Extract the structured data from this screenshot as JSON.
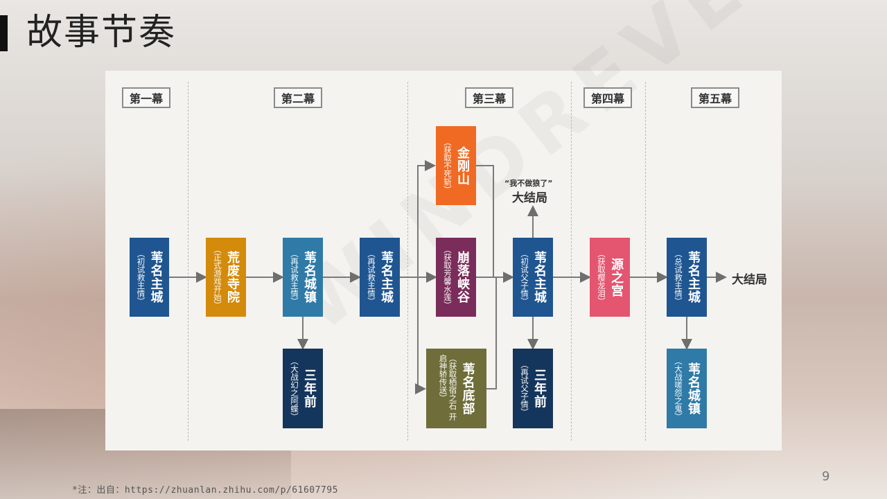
{
  "slide": {
    "title": "故事节奏",
    "footnote": "*注：出自：https://zhuanlan.zhihu.com/p/61607795",
    "page_number": "9",
    "watermark": "WINDREVEZ"
  },
  "acts": [
    "第一幕",
    "第二幕",
    "第三幕",
    "第四幕",
    "第五幕"
  ],
  "nodes": {
    "n1": {
      "title": "苇名主城",
      "sub": "（初试救主情）",
      "color": "#1f5590"
    },
    "n2": {
      "title": "荒废寺院",
      "sub": "（正式游戏开始）",
      "color": "#d48a0a"
    },
    "n3": {
      "title": "苇名城镇",
      "sub": "（再试救主情）",
      "color": "#2f7aa6"
    },
    "n4": {
      "title": "三年前",
      "sub": "（大战幻之阿蝶）",
      "color": "#15365c"
    },
    "n5": {
      "title": "苇名主城",
      "sub": "（再试救主情）",
      "color": "#1f5590"
    },
    "n6": {
      "title": "金刚山",
      "sub": "（获取不死斩）",
      "color": "#f06a23"
    },
    "n7": {
      "title": "崩落峡谷",
      "sub": "（获取芳馨水莲）",
      "color": "#7a2c5a"
    },
    "n8": {
      "title": "苇名底部",
      "sub": "（获取栖宿之石 开启神轿传送）",
      "color": "#6f6e3a"
    },
    "n9": {
      "title": "苇名主城",
      "sub": "（初试父子情）",
      "color": "#1f5590"
    },
    "n10": {
      "title": "三年前",
      "sub": "（再试父子情）",
      "color": "#15365c"
    },
    "n11": {
      "title": "源之宫",
      "sub": "（获取樱龙泪）",
      "color": "#e4556f"
    },
    "n12": {
      "title": "苇名主城",
      "sub": "（总试救主情）",
      "color": "#1f5590"
    },
    "n13": {
      "title": "苇名城镇",
      "sub": "（大战嗟怨之鬼）",
      "color": "#2f7aa6"
    }
  },
  "endings": {
    "mid_quote": "“我不做狼了”",
    "mid_label": "大结局",
    "final_label": "大结局"
  }
}
